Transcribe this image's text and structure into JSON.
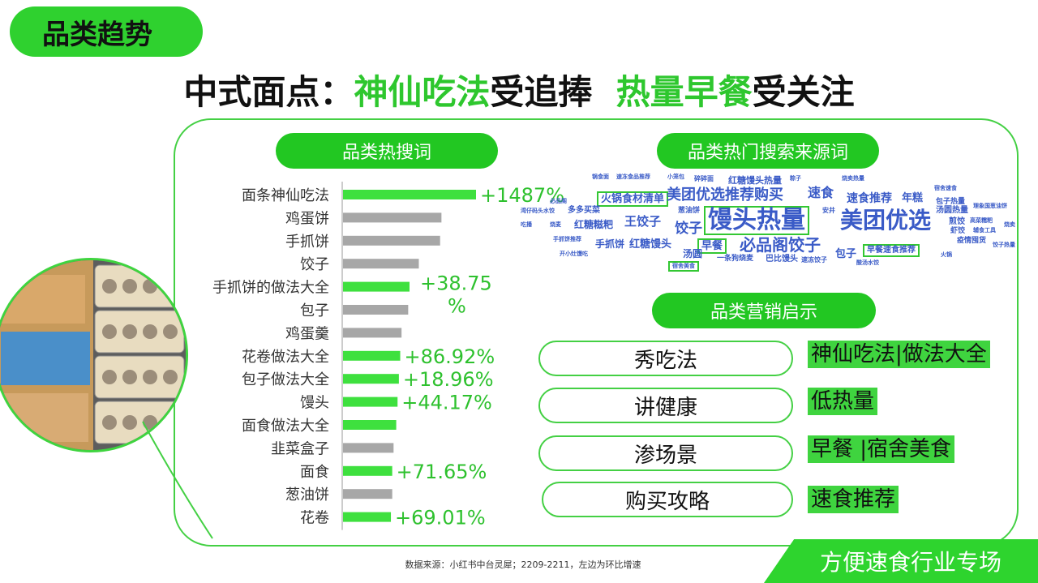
{
  "header": {
    "section_tag": "品类趋势",
    "title_parts": [
      "中式面点：",
      "神仙吃法",
      "受追捧",
      "热量早餐",
      "受关注"
    ]
  },
  "left_panel": {
    "title": "品类热搜词"
  },
  "chart_data": {
    "type": "bar",
    "orientation": "horizontal",
    "categories": [
      "面条神仙吃法",
      "鸡蛋饼",
      "手抓饼",
      "饺子",
      "手抓饼的做法大全",
      "包子",
      "鸡蛋羹",
      "花卷做法大全",
      "包子做法大全",
      "馒头",
      "面食做法大全",
      "韭菜盒子",
      "面食",
      "葱油饼",
      "花卷"
    ],
    "values": [
      100,
      74,
      73,
      57,
      50,
      49,
      44,
      43,
      42,
      41,
      40,
      38,
      37,
      37,
      36
    ],
    "highlight": [
      true,
      false,
      false,
      false,
      true,
      false,
      false,
      true,
      true,
      true,
      true,
      false,
      true,
      false,
      true
    ],
    "data_labels": [
      "+1487%",
      "",
      "",
      "",
      "+38.75\n%",
      "",
      "",
      "+86.92%",
      "+18.96%",
      "+44.17%",
      "",
      "",
      "+71.65%",
      "",
      "+69.01%"
    ],
    "colors": {
      "highlight": "#3ee03e",
      "normal": "#a7a7a7",
      "axis": "#9a9a9a"
    },
    "title": "",
    "xlabel": "",
    "ylabel": ""
  },
  "right_top": {
    "title": "品类热门搜索来源词",
    "word_cloud": [
      {
        "text": "锅食面",
        "size": 7
      },
      {
        "text": "速冻食品推荐",
        "size": 7
      },
      {
        "text": "小笼包",
        "size": 7
      },
      {
        "text": "碎碎面",
        "size": 8
      },
      {
        "text": "红糖馒头热量",
        "size": 11
      },
      {
        "text": "粽子",
        "size": 7
      },
      {
        "text": "烧卖热量",
        "size": 7
      },
      {
        "text": "宿舍速食",
        "size": 7
      },
      {
        "text": "火锅食材清单",
        "size": 13,
        "boxed": true
      },
      {
        "text": "美团优选推荐购买",
        "size": 18
      },
      {
        "text": "速食",
        "size": 16
      },
      {
        "text": "速食推荐",
        "size": 14
      },
      {
        "text": "年糕",
        "size": 13
      },
      {
        "text": "必品阁",
        "size": 7
      },
      {
        "text": "包子热量",
        "size": 9
      },
      {
        "text": "理象国葱油饼",
        "size": 7
      },
      {
        "text": "湾仔码头水饺",
        "size": 7
      },
      {
        "text": "多多买菜",
        "size": 10
      },
      {
        "text": "葱油饼",
        "size": 9
      },
      {
        "text": "馒头热量",
        "size": 30,
        "boxed": true
      },
      {
        "text": "安井",
        "size": 8
      },
      {
        "text": "美团优选",
        "size": 28
      },
      {
        "text": "汤圆热量",
        "size": 10
      },
      {
        "text": "吃播",
        "size": 7
      },
      {
        "text": "烧麦",
        "size": 7
      },
      {
        "text": "红糖糍粑",
        "size": 12
      },
      {
        "text": "王饺子",
        "size": 15
      },
      {
        "text": "饺子",
        "size": 17
      },
      {
        "text": "煎饺",
        "size": 10
      },
      {
        "text": "高菜糯粑",
        "size": 7
      },
      {
        "text": "烧卖",
        "size": 7
      },
      {
        "text": "虾饺",
        "size": 9
      },
      {
        "text": "辅食工具",
        "size": 7
      },
      {
        "text": "手抓饼推荐",
        "size": 7
      },
      {
        "text": "手抓饼",
        "size": 12
      },
      {
        "text": "红糖馒头",
        "size": 13
      },
      {
        "text": "早餐",
        "size": 13,
        "boxed": true
      },
      {
        "text": "必品阁饺子",
        "size": 20
      },
      {
        "text": "疫情囤货",
        "size": 9
      },
      {
        "text": "饺子热量",
        "size": 7
      },
      {
        "text": "开小灶馒吃",
        "size": 7
      },
      {
        "text": "汤圆",
        "size": 12
      },
      {
        "text": "一条狗烧麦",
        "size": 9
      },
      {
        "text": "巴比馒头",
        "size": 10
      },
      {
        "text": "速冻饺子",
        "size": 8
      },
      {
        "text": "包子",
        "size": 13
      },
      {
        "text": "早餐速食推荐",
        "size": 10,
        "boxed": true
      },
      {
        "text": "火锅",
        "size": 7
      },
      {
        "text": "酸汤水饺",
        "size": 7
      },
      {
        "text": "宿舍美食",
        "size": 7,
        "boxed": true
      }
    ]
  },
  "marketing": {
    "title": "品类营销启示",
    "items": [
      {
        "label": "秀吃法",
        "tag": "神仙吃法|做法大全"
      },
      {
        "label": "讲健康",
        "tag": "低热量"
      },
      {
        "label": "渗场景",
        "tag": "早餐 |宿舍美食"
      },
      {
        "label": "购买攻略",
        "tag": "速食推荐"
      }
    ]
  },
  "footer": {
    "source_note": "数据来源：小红书中台灵犀；2209-2211，左边为环比增速",
    "banner": "方便速食行业专场"
  }
}
